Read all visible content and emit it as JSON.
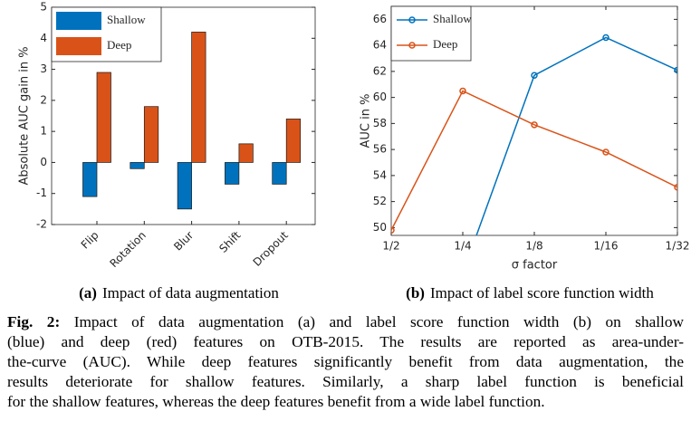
{
  "chart_data": [
    {
      "type": "bar",
      "ylabel": "Absolute AUC gain in %",
      "categories": [
        "Flip",
        "Rotation",
        "Blur",
        "Shift",
        "Dropout"
      ],
      "series": [
        {
          "name": "Shallow",
          "color": "#0072bd",
          "values": [
            -1.1,
            -0.2,
            -1.5,
            -0.7,
            -0.7
          ]
        },
        {
          "name": "Deep",
          "color": "#d95319",
          "values": [
            2.9,
            1.8,
            4.2,
            0.6,
            1.4
          ]
        }
      ],
      "ylim": [
        -2,
        5
      ],
      "yticks": [
        -2,
        -1,
        0,
        1,
        2,
        3,
        4,
        5
      ],
      "legend": "upper-left",
      "subcaption": {
        "label": "(a)",
        "text": "Impact of data augmentation"
      }
    },
    {
      "type": "line",
      "ylabel": "AUC in %",
      "xlabel": "σ factor",
      "categories": [
        "1/2",
        "1/4",
        "1/8",
        "1/16",
        "1/32"
      ],
      "series": [
        {
          "name": "Shallow",
          "color": "#0072bd",
          "values": [
            null,
            46.5,
            61.7,
            64.6,
            62.1
          ]
        },
        {
          "name": "Deep",
          "color": "#d95319",
          "values": [
            49.8,
            60.5,
            57.9,
            55.8,
            53.1
          ]
        }
      ],
      "ylim": [
        49.4,
        67
      ],
      "yticks": [
        50,
        52,
        54,
        56,
        58,
        60,
        62,
        64,
        66
      ],
      "legend": "upper-left",
      "subcaption": {
        "label": "(b)",
        "text": "Impact of label score function width"
      }
    }
  ],
  "caption": {
    "label": "Fig. 2:",
    "lines": [
      "Impact of data augmentation (a) and label score function width (b) on shallow",
      "(blue) and deep (red) features on OTB-2015. The results are reported as area-under-",
      "the-curve (AUC). While deep features significantly benefit from data augmentation, the",
      "results deteriorate for shallow features. Similarly, a sharp label function is beneficial",
      "for the shallow features, whereas the deep features benefit from a wide label function."
    ]
  }
}
